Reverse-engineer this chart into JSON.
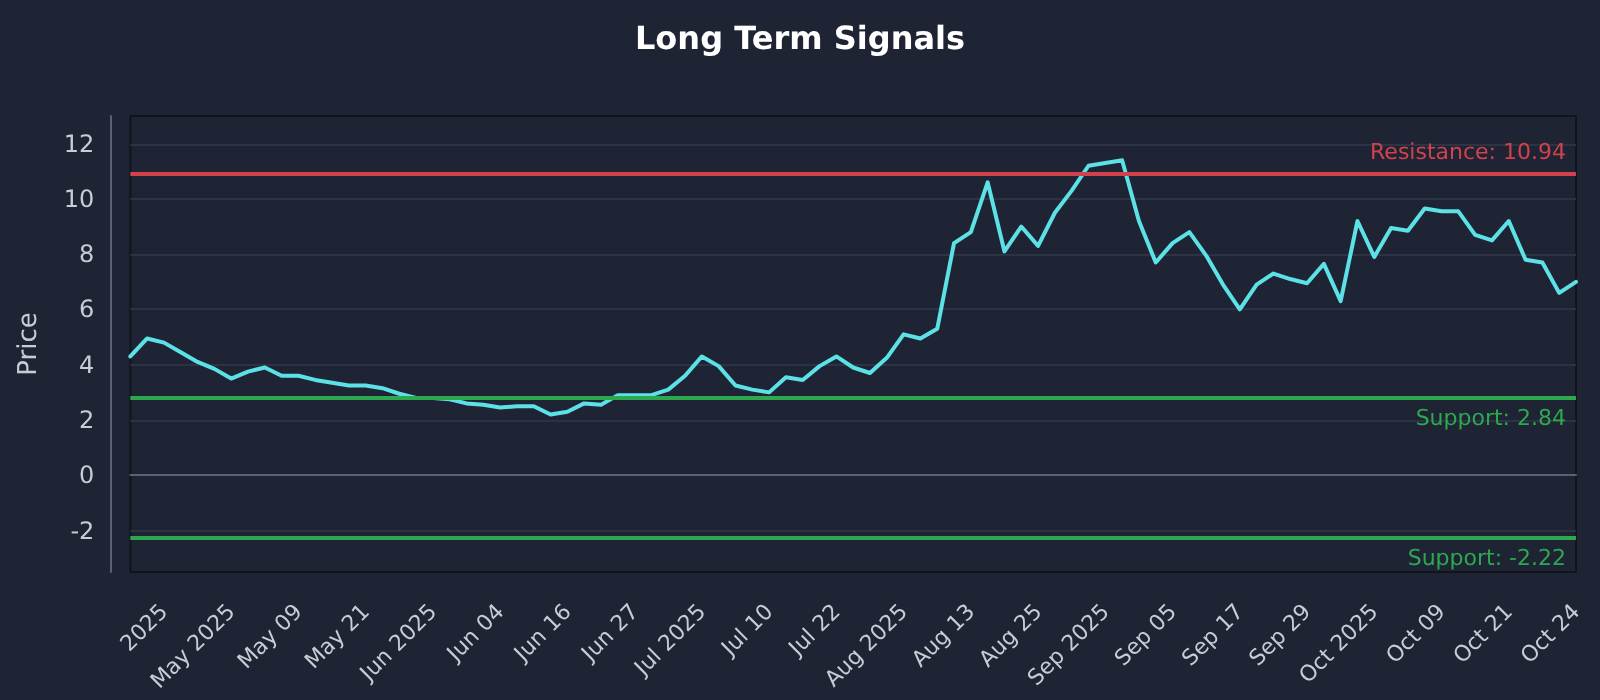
{
  "chart_data": {
    "type": "line",
    "title": "Long Term Signals",
    "ylabel": "Price",
    "categories": [
      null,
      null,
      "2025",
      null,
      null,
      null,
      "May 2025",
      null,
      null,
      null,
      "May 09",
      null,
      null,
      null,
      "May 21",
      null,
      null,
      null,
      "Jun 2025",
      null,
      null,
      null,
      "Jun 04",
      null,
      null,
      null,
      "Jun 16",
      null,
      null,
      null,
      "Jun 27",
      null,
      null,
      null,
      "Jul 2025",
      null,
      null,
      null,
      "Jul 10",
      null,
      null,
      null,
      "Jul 22",
      null,
      null,
      null,
      "Aug 2025",
      null,
      null,
      null,
      "Aug 13",
      null,
      null,
      null,
      "Aug 25",
      null,
      null,
      null,
      "Sep 2025",
      null,
      null,
      null,
      "Sep 05",
      null,
      null,
      null,
      "Sep 17",
      null,
      null,
      null,
      "Sep 29",
      null,
      null,
      null,
      "Oct 2025",
      null,
      null,
      null,
      "Oct 09",
      null,
      null,
      null,
      "Oct 21",
      null,
      null,
      null,
      "Oct 24"
    ],
    "series": [
      {
        "color": "#5ce1e6",
        "values": [
          4.3,
          4.95,
          4.8,
          4.45,
          4.1,
          3.85,
          3.5,
          3.75,
          3.9,
          3.6,
          3.6,
          3.45,
          3.35,
          3.25,
          3.25,
          3.15,
          2.95,
          2.8,
          2.8,
          2.75,
          2.6,
          2.55,
          2.45,
          2.5,
          2.5,
          2.2,
          2.3,
          2.6,
          2.55,
          2.9,
          2.9,
          2.9,
          3.1,
          3.6,
          4.3,
          3.95,
          3.25,
          3.1,
          3.0,
          3.55,
          3.45,
          3.95,
          4.3,
          3.9,
          3.7,
          4.25,
          5.1,
          4.95,
          5.3,
          8.4,
          8.8,
          10.6,
          8.1,
          9.0,
          8.3,
          9.5,
          10.3,
          11.2,
          11.3,
          11.4,
          9.2,
          7.7,
          8.4,
          8.8,
          7.95,
          6.9,
          6.0,
          6.9,
          7.3,
          7.1,
          6.95,
          7.65,
          6.3,
          9.2,
          7.9,
          8.95,
          8.85,
          9.65,
          9.55,
          9.55,
          8.7,
          8.5,
          9.2,
          7.8,
          7.7,
          6.6,
          7.0
        ]
      }
    ],
    "ylim": [
      -3.5,
      13
    ],
    "yticks": [
      -2,
      0,
      2,
      4,
      6,
      8,
      10,
      12
    ],
    "grid": "y",
    "marker": "none",
    "line_style": "solid",
    "ref_lines": [
      {
        "axis": "y",
        "value": 10.94,
        "label": "Resistance: 10.94",
        "color": "#d2424c"
      },
      {
        "axis": "y",
        "value": 2.84,
        "label": "Support: 2.84",
        "color": "#2ea84f"
      },
      {
        "axis": "y",
        "value": -2.22,
        "label": "Support: -2.22",
        "color": "#2ea84f"
      }
    ]
  }
}
